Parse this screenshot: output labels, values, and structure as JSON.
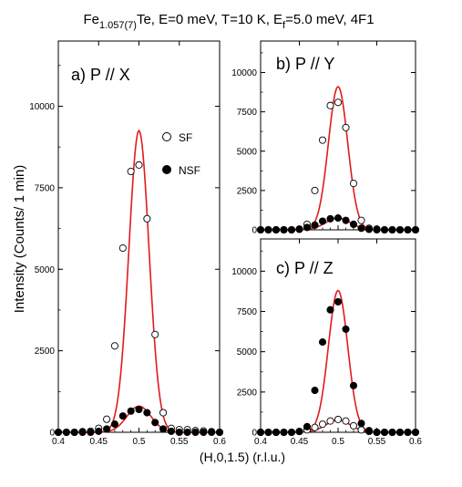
{
  "title": {
    "base": "Fe",
    "sub1": "1.057(7)",
    "mid": "Te, E=0 meV, T=10 K, E",
    "sub2": "f",
    "tail": "=5.0 meV, 4F1"
  },
  "ylabel": "Intensity (Counts/ 1 min)",
  "xlabel": "(H,0,1.5) (r.l.u.)",
  "legend": {
    "sf": "SF",
    "nsf": "NSF"
  },
  "colors": {
    "fit": "#e31a1c",
    "marker_edge": "#000000",
    "nsf_fill": "#000000",
    "sf_fill": "#ffffff"
  },
  "chart_data": [
    {
      "type": "scatter",
      "panel_label": "a) P // X",
      "xlim": [
        0.4,
        0.6
      ],
      "ylim": [
        0,
        12000
      ],
      "x_ticks": [
        "0.4",
        "0.45",
        "0.5",
        "0.55",
        "0.6"
      ],
      "y_ticks": [
        "0",
        "2500",
        "5000",
        "7500",
        "10000"
      ],
      "show_x_tick_labels": true,
      "show_y_tick_labels": true,
      "legend": true,
      "series": [
        {
          "name": "SF",
          "x": [
            0.4,
            0.41,
            0.42,
            0.43,
            0.44,
            0.45,
            0.46,
            0.47,
            0.48,
            0.49,
            0.5,
            0.51,
            0.52,
            0.53,
            0.54,
            0.55,
            0.56,
            0.57,
            0.58,
            0.59,
            0.6
          ],
          "y": [
            0,
            0,
            0,
            20,
            30,
            120,
            400,
            2650,
            5650,
            8000,
            8200,
            6550,
            3000,
            600,
            120,
            80,
            80,
            50,
            40,
            20,
            0
          ]
        },
        {
          "name": "NSF",
          "x": [
            0.4,
            0.41,
            0.42,
            0.43,
            0.44,
            0.45,
            0.46,
            0.47,
            0.48,
            0.49,
            0.5,
            0.51,
            0.52,
            0.53,
            0.54,
            0.55,
            0.56,
            0.57,
            0.58,
            0.59,
            0.6
          ],
          "y": [
            0,
            0,
            0,
            0,
            0,
            30,
            100,
            250,
            500,
            650,
            700,
            600,
            300,
            100,
            30,
            0,
            0,
            0,
            0,
            0,
            0
          ]
        }
      ],
      "fits": [
        {
          "series": "SF",
          "amplitude": 9250,
          "center": 0.5,
          "sigma": 0.0125
        },
        {
          "series": "NSF",
          "amplitude": 800,
          "center": 0.5,
          "sigma": 0.015
        }
      ]
    },
    {
      "type": "scatter",
      "panel_label": "b) P // Y",
      "xlim": [
        0.4,
        0.6
      ],
      "ylim": [
        0,
        12000
      ],
      "x_ticks": [
        "0.4",
        "0.45",
        "0.5",
        "0.55",
        "0.6"
      ],
      "y_ticks": [
        "0",
        "2500",
        "5000",
        "7500",
        "10000"
      ],
      "show_x_tick_labels": false,
      "show_y_tick_labels": true,
      "legend": false,
      "series": [
        {
          "name": "SF",
          "x": [
            0.4,
            0.41,
            0.42,
            0.43,
            0.44,
            0.45,
            0.46,
            0.47,
            0.48,
            0.49,
            0.5,
            0.51,
            0.52,
            0.53,
            0.54,
            0.55,
            0.56,
            0.57,
            0.58,
            0.59,
            0.6
          ],
          "y": [
            0,
            0,
            0,
            0,
            0,
            50,
            350,
            2500,
            5700,
            7900,
            8100,
            6500,
            2950,
            600,
            100,
            50,
            0,
            0,
            0,
            0,
            0
          ]
        },
        {
          "name": "NSF",
          "x": [
            0.4,
            0.41,
            0.42,
            0.43,
            0.44,
            0.45,
            0.46,
            0.47,
            0.48,
            0.49,
            0.5,
            0.51,
            0.52,
            0.53,
            0.54,
            0.55,
            0.56,
            0.57,
            0.58,
            0.59,
            0.6
          ],
          "y": [
            0,
            0,
            0,
            0,
            0,
            30,
            150,
            300,
            550,
            700,
            750,
            600,
            350,
            100,
            30,
            0,
            0,
            0,
            0,
            0,
            0
          ]
        }
      ],
      "fits": [
        {
          "series": "SF",
          "amplitude": 9100,
          "center": 0.5,
          "sigma": 0.0125
        },
        {
          "series": "NSF",
          "amplitude": 750,
          "center": 0.5,
          "sigma": 0.016
        }
      ]
    },
    {
      "type": "scatter",
      "panel_label": "c) P // Z",
      "xlim": [
        0.4,
        0.6
      ],
      "ylim": [
        0,
        12000
      ],
      "x_ticks": [
        "0.4",
        "0.45",
        "0.5",
        "0.55",
        "0.6"
      ],
      "y_ticks": [
        "0",
        "2500",
        "5000",
        "7500",
        "10000"
      ],
      "show_x_tick_labels": true,
      "show_y_tick_labels": true,
      "legend": false,
      "series": [
        {
          "name": "SF",
          "x": [
            0.4,
            0.41,
            0.42,
            0.43,
            0.44,
            0.45,
            0.46,
            0.47,
            0.48,
            0.49,
            0.5,
            0.51,
            0.52,
            0.53,
            0.54,
            0.55,
            0.56,
            0.57,
            0.58,
            0.59,
            0.6
          ],
          "y": [
            0,
            0,
            0,
            0,
            0,
            50,
            150,
            300,
            500,
            700,
            800,
            700,
            400,
            150,
            50,
            0,
            0,
            0,
            0,
            0,
            0
          ]
        },
        {
          "name": "NSF",
          "x": [
            0.4,
            0.41,
            0.42,
            0.43,
            0.44,
            0.45,
            0.46,
            0.47,
            0.48,
            0.49,
            0.5,
            0.51,
            0.52,
            0.53,
            0.54,
            0.55,
            0.56,
            0.57,
            0.58,
            0.59,
            0.6
          ],
          "y": [
            0,
            0,
            0,
            0,
            0,
            50,
            350,
            2600,
            5600,
            7600,
            8100,
            6400,
            2900,
            550,
            100,
            0,
            0,
            0,
            0,
            0,
            0
          ]
        }
      ],
      "fits": [
        {
          "series": "NSF",
          "amplitude": 8800,
          "center": 0.5,
          "sigma": 0.0125
        },
        {
          "series": "SF",
          "amplitude": 750,
          "center": 0.5,
          "sigma": 0.016
        }
      ]
    }
  ]
}
